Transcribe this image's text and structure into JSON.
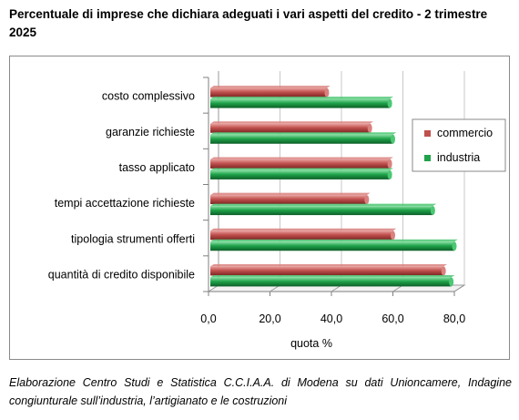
{
  "title": "Percentuale di imprese che dichiara adeguati i vari aspetti del credito - 2 trimestre 2025",
  "caption": "Elaborazione Centro Studi e Statistica C.C.I.A.A. di Modena su dati Unioncamere, Indagine congiunturale sull’industria, l’artigianato e le costruzioni",
  "chart_data": {
    "type": "bar",
    "orientation": "horizontal",
    "style": "3d-cylinder",
    "xlabel": "quota %",
    "xlim": [
      0,
      80
    ],
    "ticks": [
      0,
      20,
      40,
      60,
      80
    ],
    "tick_labels": [
      "0,0",
      "20,0",
      "40,0",
      "60,0",
      "80,0"
    ],
    "categories": [
      "costo complessivo",
      "garanzie richieste",
      "tasso applicato",
      "tempi accettazione richieste",
      "tipologia strumenti offerti",
      "quantità di credito disponibile"
    ],
    "series": [
      {
        "name": "commercio",
        "color": "#c0504d",
        "values": [
          38.5,
          52.5,
          59.0,
          51.5,
          60.0,
          76.5
        ]
      },
      {
        "name": "industria",
        "color": "#1fa34a",
        "values": [
          59.0,
          60.0,
          59.0,
          73.0,
          80.0,
          79.0
        ]
      }
    ],
    "legend_position": "right",
    "grid": true
  }
}
